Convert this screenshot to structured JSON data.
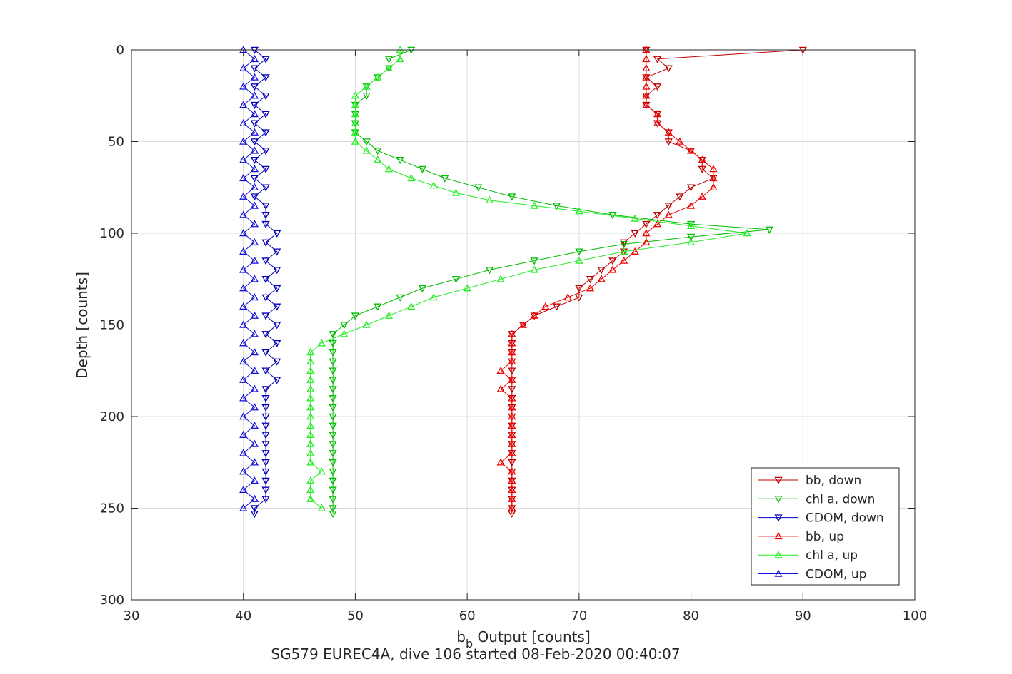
{
  "chart_data": {
    "type": "line",
    "subtitle": "SG579 EUREC4A, dive 106 started 08-Feb-2020 00:40:07",
    "xlabel_main": "b",
    "xlabel_sub": "b",
    "xlabel_rest": " Output [counts]",
    "ylabel": "Depth [counts]",
    "xlim": [
      30,
      100
    ],
    "ylim": [
      0,
      300
    ],
    "y_reversed": true,
    "grid": true,
    "legend_position": "bottom-right",
    "x_ticks": [
      "30",
      "40",
      "50",
      "60",
      "70",
      "80",
      "90",
      "100"
    ],
    "y_ticks": [
      "0",
      "50",
      "100",
      "150",
      "200",
      "250",
      "300"
    ],
    "series": [
      {
        "name": "bb, down",
        "color": "#c00000",
        "marker": "triangle-down",
        "points": [
          [
            76,
            0
          ],
          [
            90,
            0
          ],
          [
            77,
            5
          ],
          [
            78,
            10
          ],
          [
            76,
            15
          ],
          [
            77,
            20
          ],
          [
            76,
            25
          ],
          [
            76,
            30
          ],
          [
            77,
            35
          ],
          [
            77,
            40
          ],
          [
            78,
            45
          ],
          [
            78,
            50
          ],
          [
            80,
            55
          ],
          [
            81,
            60
          ],
          [
            81,
            65
          ],
          [
            82,
            70
          ],
          [
            80,
            75
          ],
          [
            79,
            80
          ],
          [
            78,
            85
          ],
          [
            77,
            90
          ],
          [
            76,
            95
          ],
          [
            75,
            100
          ],
          [
            74,
            105
          ],
          [
            74,
            110
          ],
          [
            73,
            115
          ],
          [
            72,
            120
          ],
          [
            71,
            125
          ],
          [
            70,
            130
          ],
          [
            70,
            135
          ],
          [
            68,
            140
          ],
          [
            66,
            145
          ],
          [
            65,
            150
          ],
          [
            64,
            155
          ],
          [
            64,
            160
          ],
          [
            64,
            165
          ],
          [
            64,
            170
          ],
          [
            64,
            175
          ],
          [
            64,
            180
          ],
          [
            64,
            185
          ],
          [
            64,
            190
          ],
          [
            64,
            195
          ],
          [
            64,
            200
          ],
          [
            64,
            205
          ],
          [
            64,
            210
          ],
          [
            64,
            215
          ],
          [
            64,
            220
          ],
          [
            64,
            225
          ],
          [
            64,
            230
          ],
          [
            64,
            235
          ],
          [
            64,
            240
          ],
          [
            64,
            245
          ],
          [
            64,
            250
          ],
          [
            64,
            253
          ]
        ]
      },
      {
        "name": "chl a, down",
        "color": "#00bb00",
        "marker": "triangle-down",
        "points": [
          [
            55,
            0
          ],
          [
            53,
            5
          ],
          [
            53,
            10
          ],
          [
            52,
            15
          ],
          [
            51,
            20
          ],
          [
            51,
            25
          ],
          [
            50,
            30
          ],
          [
            50,
            35
          ],
          [
            50,
            40
          ],
          [
            50,
            45
          ],
          [
            51,
            50
          ],
          [
            52,
            55
          ],
          [
            54,
            60
          ],
          [
            56,
            65
          ],
          [
            58,
            70
          ],
          [
            61,
            75
          ],
          [
            64,
            80
          ],
          [
            68,
            85
          ],
          [
            73,
            90
          ],
          [
            80,
            95
          ],
          [
            87,
            98
          ],
          [
            80,
            102
          ],
          [
            74,
            106
          ],
          [
            70,
            110
          ],
          [
            66,
            115
          ],
          [
            62,
            120
          ],
          [
            59,
            125
          ],
          [
            56,
            130
          ],
          [
            54,
            135
          ],
          [
            52,
            140
          ],
          [
            50,
            145
          ],
          [
            49,
            150
          ],
          [
            48,
            155
          ],
          [
            48,
            160
          ],
          [
            48,
            165
          ],
          [
            48,
            170
          ],
          [
            48,
            175
          ],
          [
            48,
            180
          ],
          [
            48,
            185
          ],
          [
            48,
            190
          ],
          [
            48,
            195
          ],
          [
            48,
            200
          ],
          [
            48,
            205
          ],
          [
            48,
            210
          ],
          [
            48,
            215
          ],
          [
            48,
            220
          ],
          [
            48,
            225
          ],
          [
            48,
            230
          ],
          [
            48,
            235
          ],
          [
            48,
            240
          ],
          [
            48,
            245
          ],
          [
            48,
            250
          ],
          [
            48,
            253
          ]
        ]
      },
      {
        "name": "CDOM, down",
        "color": "#0000bb",
        "marker": "triangle-down",
        "points": [
          [
            41,
            0
          ],
          [
            42,
            5
          ],
          [
            41,
            10
          ],
          [
            42,
            15
          ],
          [
            41,
            20
          ],
          [
            42,
            25
          ],
          [
            41,
            30
          ],
          [
            42,
            35
          ],
          [
            41,
            40
          ],
          [
            42,
            45
          ],
          [
            41,
            50
          ],
          [
            42,
            55
          ],
          [
            41,
            60
          ],
          [
            42,
            65
          ],
          [
            41,
            70
          ],
          [
            42,
            75
          ],
          [
            41,
            80
          ],
          [
            42,
            85
          ],
          [
            42,
            90
          ],
          [
            42,
            95
          ],
          [
            43,
            100
          ],
          [
            42,
            105
          ],
          [
            43,
            110
          ],
          [
            42,
            115
          ],
          [
            43,
            120
          ],
          [
            42,
            125
          ],
          [
            43,
            130
          ],
          [
            42,
            135
          ],
          [
            43,
            140
          ],
          [
            42,
            145
          ],
          [
            43,
            150
          ],
          [
            42,
            155
          ],
          [
            43,
            160
          ],
          [
            42,
            165
          ],
          [
            43,
            170
          ],
          [
            42,
            175
          ],
          [
            43,
            180
          ],
          [
            42,
            185
          ],
          [
            42,
            190
          ],
          [
            42,
            195
          ],
          [
            42,
            200
          ],
          [
            42,
            205
          ],
          [
            42,
            210
          ],
          [
            42,
            215
          ],
          [
            42,
            220
          ],
          [
            42,
            225
          ],
          [
            42,
            230
          ],
          [
            42,
            235
          ],
          [
            42,
            240
          ],
          [
            42,
            245
          ],
          [
            41,
            250
          ],
          [
            41,
            253
          ]
        ]
      },
      {
        "name": "bb, up",
        "color": "#ee0000",
        "marker": "triangle-up",
        "points": [
          [
            64,
            250
          ],
          [
            64,
            245
          ],
          [
            64,
            240
          ],
          [
            64,
            235
          ],
          [
            64,
            230
          ],
          [
            63,
            225
          ],
          [
            64,
            220
          ],
          [
            64,
            215
          ],
          [
            64,
            210
          ],
          [
            64,
            205
          ],
          [
            64,
            200
          ],
          [
            64,
            195
          ],
          [
            64,
            190
          ],
          [
            63,
            185
          ],
          [
            64,
            180
          ],
          [
            63,
            175
          ],
          [
            64,
            170
          ],
          [
            64,
            165
          ],
          [
            64,
            160
          ],
          [
            64,
            155
          ],
          [
            65,
            150
          ],
          [
            66,
            145
          ],
          [
            67,
            140
          ],
          [
            69,
            135
          ],
          [
            71,
            130
          ],
          [
            72,
            125
          ],
          [
            73,
            120
          ],
          [
            74,
            115
          ],
          [
            75,
            110
          ],
          [
            76,
            105
          ],
          [
            76,
            100
          ],
          [
            77,
            95
          ],
          [
            78,
            90
          ],
          [
            80,
            85
          ],
          [
            81,
            80
          ],
          [
            82,
            75
          ],
          [
            82,
            70
          ],
          [
            82,
            65
          ],
          [
            81,
            60
          ],
          [
            80,
            55
          ],
          [
            79,
            50
          ],
          [
            78,
            45
          ],
          [
            77,
            40
          ],
          [
            77,
            35
          ],
          [
            76,
            30
          ],
          [
            76,
            25
          ],
          [
            76,
            20
          ],
          [
            76,
            15
          ],
          [
            76,
            10
          ],
          [
            76,
            5
          ],
          [
            76,
            0
          ]
        ]
      },
      {
        "name": "chl a, up",
        "color": "#22ee22",
        "marker": "triangle-up",
        "points": [
          [
            47,
            250
          ],
          [
            46,
            245
          ],
          [
            46,
            240
          ],
          [
            46,
            235
          ],
          [
            47,
            230
          ],
          [
            46,
            225
          ],
          [
            46,
            220
          ],
          [
            46,
            215
          ],
          [
            46,
            210
          ],
          [
            46,
            205
          ],
          [
            46,
            200
          ],
          [
            46,
            195
          ],
          [
            46,
            190
          ],
          [
            46,
            185
          ],
          [
            46,
            180
          ],
          [
            46,
            175
          ],
          [
            46,
            170
          ],
          [
            46,
            165
          ],
          [
            47,
            160
          ],
          [
            49,
            155
          ],
          [
            51,
            150
          ],
          [
            53,
            145
          ],
          [
            55,
            140
          ],
          [
            57,
            135
          ],
          [
            60,
            130
          ],
          [
            63,
            125
          ],
          [
            66,
            120
          ],
          [
            70,
            115
          ],
          [
            74,
            110
          ],
          [
            80,
            105
          ],
          [
            85,
            100
          ],
          [
            80,
            96
          ],
          [
            75,
            92
          ],
          [
            70,
            88
          ],
          [
            66,
            85
          ],
          [
            62,
            82
          ],
          [
            59,
            78
          ],
          [
            57,
            74
          ],
          [
            55,
            70
          ],
          [
            53,
            65
          ],
          [
            52,
            60
          ],
          [
            51,
            55
          ],
          [
            50,
            50
          ],
          [
            50,
            45
          ],
          [
            50,
            40
          ],
          [
            50,
            35
          ],
          [
            50,
            30
          ],
          [
            50,
            25
          ],
          [
            51,
            20
          ],
          [
            52,
            15
          ],
          [
            53,
            10
          ],
          [
            54,
            5
          ],
          [
            54,
            0
          ]
        ]
      },
      {
        "name": "CDOM, up",
        "color": "#1111dd",
        "marker": "triangle-up",
        "points": [
          [
            40,
            250
          ],
          [
            41,
            245
          ],
          [
            40,
            240
          ],
          [
            41,
            235
          ],
          [
            40,
            230
          ],
          [
            41,
            225
          ],
          [
            40,
            220
          ],
          [
            41,
            215
          ],
          [
            40,
            210
          ],
          [
            41,
            205
          ],
          [
            40,
            200
          ],
          [
            41,
            195
          ],
          [
            40,
            190
          ],
          [
            41,
            185
          ],
          [
            40,
            180
          ],
          [
            41,
            175
          ],
          [
            40,
            170
          ],
          [
            41,
            165
          ],
          [
            40,
            160
          ],
          [
            41,
            155
          ],
          [
            40,
            150
          ],
          [
            41,
            145
          ],
          [
            40,
            140
          ],
          [
            41,
            135
          ],
          [
            40,
            130
          ],
          [
            41,
            125
          ],
          [
            40,
            120
          ],
          [
            41,
            115
          ],
          [
            40,
            110
          ],
          [
            41,
            105
          ],
          [
            40,
            100
          ],
          [
            41,
            95
          ],
          [
            40,
            90
          ],
          [
            41,
            85
          ],
          [
            40,
            80
          ],
          [
            41,
            75
          ],
          [
            40,
            70
          ],
          [
            41,
            65
          ],
          [
            40,
            60
          ],
          [
            41,
            55
          ],
          [
            40,
            50
          ],
          [
            41,
            45
          ],
          [
            40,
            40
          ],
          [
            41,
            35
          ],
          [
            40,
            30
          ],
          [
            41,
            25
          ],
          [
            40,
            20
          ],
          [
            41,
            15
          ],
          [
            40,
            10
          ],
          [
            41,
            5
          ],
          [
            40,
            0
          ]
        ]
      }
    ]
  }
}
